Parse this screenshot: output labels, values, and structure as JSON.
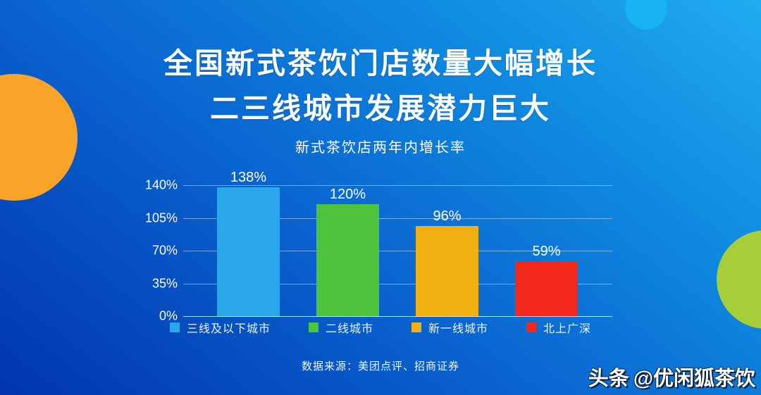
{
  "page": {
    "title_line1": "全国新式茶饮门店数量大幅增长",
    "title_line2": "二三线城市发展潜力巨大",
    "source": "数据来源：美团点评、招商证券",
    "watermark_brand": "头条",
    "watermark_handle": "@优闲狐茶饮"
  },
  "chart_data": {
    "type": "bar",
    "title": "新式茶饮店两年内增长率",
    "categories": [
      "三线及以下城市",
      "二线城市",
      "新一线城市",
      "北上广深"
    ],
    "values": [
      138,
      120,
      96,
      59
    ],
    "value_labels": [
      "138%",
      "120%",
      "96%",
      "59%"
    ],
    "bar_colors": [
      "#29a7ea",
      "#4ec43e",
      "#f1b011",
      "#f2291a"
    ],
    "yticks": [
      0,
      35,
      70,
      105,
      140
    ],
    "ytick_labels": [
      "0%",
      "35%",
      "70%",
      "105%",
      "140%"
    ],
    "ylim": [
      0,
      140
    ],
    "xlabel": "",
    "ylabel": "",
    "grid": true,
    "legend_position": "bottom"
  },
  "colors": {
    "background_dark": "#0135ae",
    "background_bright": "#21abf0",
    "circle_orange": "#f9a428",
    "circle_green": "#a6ce38",
    "circle_cyan": "#16b2f2",
    "text": "#ffffff"
  }
}
